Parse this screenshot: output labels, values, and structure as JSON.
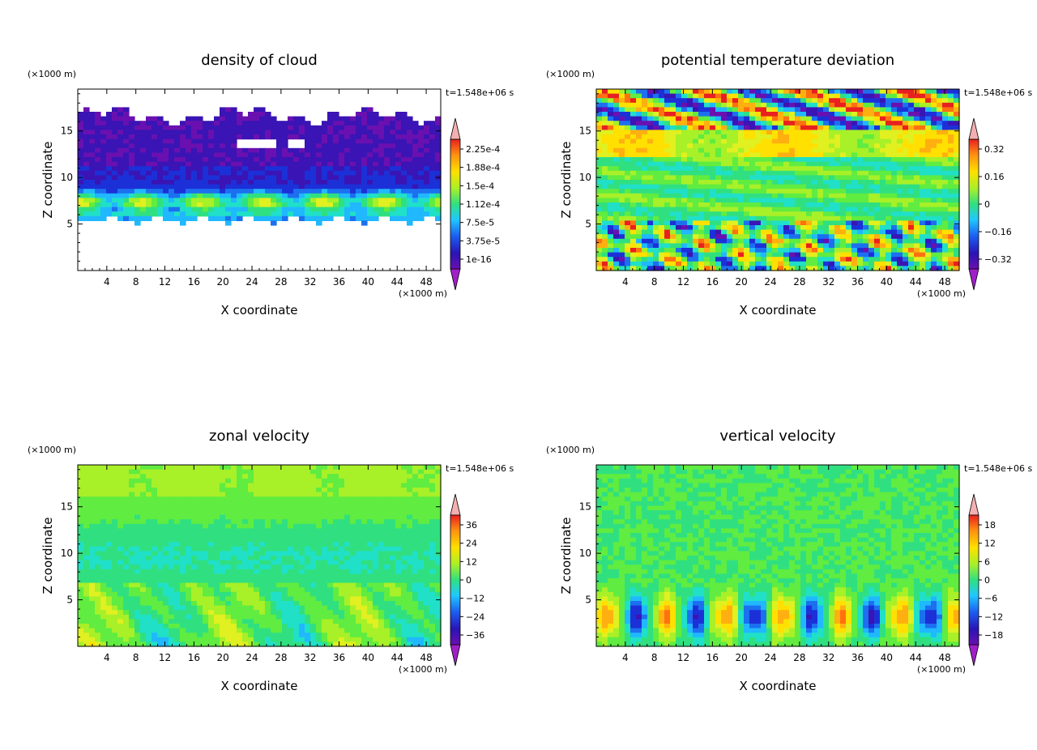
{
  "figure": {
    "panels": [
      {
        "id": "cloud",
        "title": "density of cloud",
        "time_label": "t=1.548e+06 s",
        "x_unit": "(×1000 m)",
        "z_unit": "(×1000 m)",
        "xlabel": "X coordinate",
        "ylabel": "Z coordinate",
        "colorbar_labels": [
          "2.25e-4",
          "1.88e-4",
          "1.5e-4",
          "1.12e-4",
          "7.5e-5",
          "3.75e-5",
          "1e-16"
        ]
      },
      {
        "id": "theta",
        "title": "potential temperature deviation",
        "time_label": "t=1.548e+06 s",
        "x_unit": "(×1000 m)",
        "z_unit": "(×1000 m)",
        "xlabel": "X coordinate",
        "ylabel": "Z coordinate",
        "colorbar_labels": [
          "0.32",
          "0.16",
          "0",
          "−0.16",
          "−0.32"
        ]
      },
      {
        "id": "u",
        "title": "zonal velocity",
        "time_label": "t=1.548e+06 s",
        "x_unit": "(×1000 m)",
        "z_unit": "(×1000 m)",
        "xlabel": "X coordinate",
        "ylabel": "Z coordinate",
        "colorbar_labels": [
          "36",
          "24",
          "12",
          "0",
          "−12",
          "−24",
          "−36"
        ]
      },
      {
        "id": "w",
        "title": "vertical velocity",
        "time_label": "t=1.548e+06 s",
        "x_unit": "(×1000 m)",
        "z_unit": "(×1000 m)",
        "xlabel": "X coordinate",
        "ylabel": "Z coordinate",
        "colorbar_labels": [
          "18",
          "12",
          "6",
          "0",
          "−6",
          "−12",
          "−18"
        ]
      }
    ]
  },
  "chart_data": [
    {
      "type": "heatmap",
      "title": "density of cloud",
      "xlabel": "X coordinate",
      "ylabel": "Z coordinate",
      "x_ticks": [
        4,
        8,
        12,
        16,
        20,
        24,
        28,
        32,
        36,
        40,
        44,
        48
      ],
      "y_ticks": [
        5,
        10,
        15
      ],
      "xlim": [
        0,
        50
      ],
      "ylim": [
        0,
        19.5
      ],
      "colorbar_levels": [
        1e-16,
        3.75e-05,
        7.5e-05,
        0.000112,
        0.00015,
        0.000188,
        0.000225
      ],
      "cloud_layer_z": [
        5.3,
        17.2
      ],
      "colors": [
        "#5a1aa8",
        "#2a14b4",
        "#1c5cf0",
        "#20c8ff",
        "#30e080",
        "#a8f028",
        "#ffe000",
        "#ff9010",
        "#e82020",
        "#f4b0b0"
      ]
    },
    {
      "type": "heatmap",
      "title": "potential temperature deviation",
      "xlabel": "X coordinate",
      "ylabel": "Z coordinate",
      "x_ticks": [
        4,
        8,
        12,
        16,
        20,
        24,
        28,
        32,
        36,
        40,
        44,
        48
      ],
      "y_ticks": [
        5,
        10,
        15
      ],
      "xlim": [
        0,
        50
      ],
      "ylim": [
        0,
        19.5
      ],
      "colorbar_levels": [
        -0.32,
        -0.16,
        0,
        0.16,
        0.32
      ]
    },
    {
      "type": "heatmap",
      "title": "zonal velocity",
      "xlabel": "X coordinate",
      "ylabel": "Z coordinate",
      "x_ticks": [
        4,
        8,
        12,
        16,
        20,
        24,
        28,
        32,
        36,
        40,
        44,
        48
      ],
      "y_ticks": [
        5,
        10,
        15
      ],
      "xlim": [
        0,
        50
      ],
      "ylim": [
        0,
        19.5
      ],
      "colorbar_levels": [
        -36,
        -24,
        -12,
        0,
        12,
        24,
        36
      ]
    },
    {
      "type": "heatmap",
      "title": "vertical velocity",
      "xlabel": "X coordinate",
      "ylabel": "Z coordinate",
      "x_ticks": [
        4,
        8,
        12,
        16,
        20,
        24,
        28,
        32,
        36,
        40,
        44,
        48
      ],
      "y_ticks": [
        5,
        10,
        15
      ],
      "xlim": [
        0,
        50
      ],
      "ylim": [
        0,
        19.5
      ],
      "colorbar_levels": [
        -18,
        -12,
        -6,
        0,
        6,
        12,
        18
      ]
    }
  ]
}
